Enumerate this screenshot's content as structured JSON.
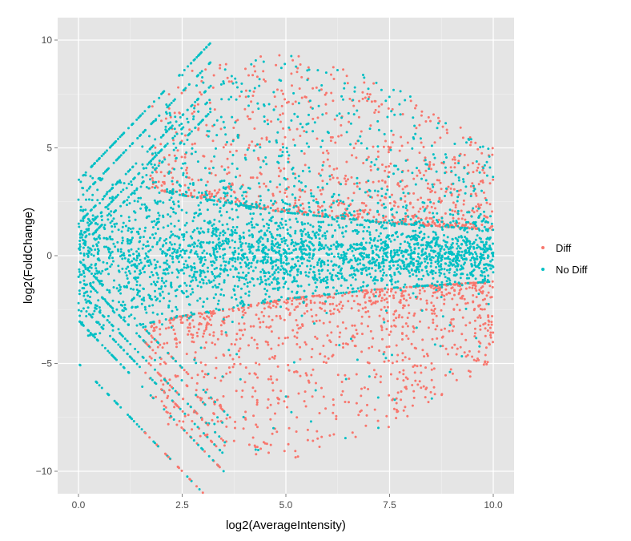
{
  "chart_data": {
    "type": "scatter",
    "title": "",
    "xlabel": "log2(AverageIntensity)",
    "ylabel": "log2(FoldChange)",
    "xlim": [
      -0.5,
      10.5
    ],
    "ylim": [
      -11,
      11
    ],
    "x_ticks": [
      "0.0",
      "2.5",
      "5.0",
      "7.5",
      "10.0"
    ],
    "x_tick_values": [
      0,
      2.5,
      5,
      7.5,
      10
    ],
    "y_ticks": [
      "10",
      "5",
      "0",
      "−5",
      "−10"
    ],
    "y_tick_values": [
      10,
      5,
      0,
      -5,
      -10
    ],
    "grid": true,
    "legend_position": "right",
    "series": [
      {
        "name": "Diff",
        "color": "#F8766D",
        "description": "differentially expressed points; spread |log2FC| approx 1-10, densest for x 2-6"
      },
      {
        "name": "No Diff",
        "color": "#00BFC4",
        "description": "non-differential points; dense band around 0 narrowing from about ±4 at x=0 to about ±1 at x=10, plus diagonal streaks at low intensity"
      }
    ],
    "envelope": {
      "x": [
        0,
        2.5,
        5,
        7.5,
        10
      ],
      "diff_lower_bound_abs_fc": [
        3.8,
        2.8,
        2.0,
        1.5,
        1.2
      ],
      "outer_extent_abs_fc": [
        3.6,
        8.5,
        9.5,
        8.0,
        5.0
      ]
    },
    "streak_intercepts": [
      3.5,
      2.6,
      1.5,
      0.9,
      0.3,
      -0.2,
      -0.8,
      -1.6,
      -2.2,
      -3.0,
      -5.0
    ],
    "approx_point_count": 4000
  }
}
